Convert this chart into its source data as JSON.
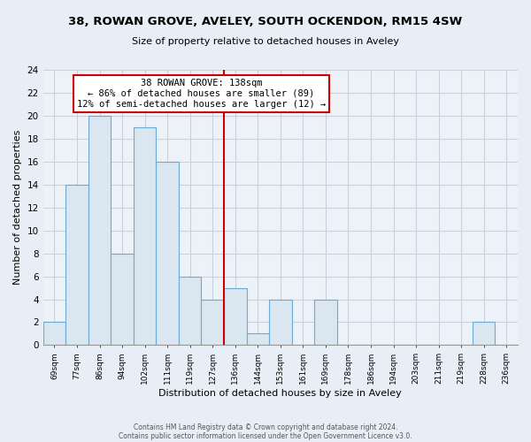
{
  "title": "38, ROWAN GROVE, AVELEY, SOUTH OCKENDON, RM15 4SW",
  "subtitle": "Size of property relative to detached houses in Aveley",
  "xlabel": "Distribution of detached houses by size in Aveley",
  "ylabel": "Number of detached properties",
  "bin_labels": [
    "69sqm",
    "77sqm",
    "86sqm",
    "94sqm",
    "102sqm",
    "111sqm",
    "119sqm",
    "127sqm",
    "136sqm",
    "144sqm",
    "153sqm",
    "161sqm",
    "169sqm",
    "178sqm",
    "186sqm",
    "194sqm",
    "203sqm",
    "211sqm",
    "219sqm",
    "228sqm",
    "236sqm"
  ],
  "bar_heights": [
    2,
    14,
    20,
    8,
    19,
    16,
    6,
    4,
    5,
    1,
    4,
    0,
    4,
    0,
    0,
    0,
    0,
    0,
    0,
    2,
    0
  ],
  "bar_color": "#dae6f0",
  "bar_edge_color": "#6aaad4",
  "highlight_bin_index": 8,
  "highlight_line_color": "#cc0000",
  "annotation_title": "38 ROWAN GROVE: 138sqm",
  "annotation_line1": "← 86% of detached houses are smaller (89)",
  "annotation_line2": "12% of semi-detached houses are larger (12) →",
  "annotation_box_color": "#ffffff",
  "annotation_box_edge_color": "#cc0000",
  "ylim": [
    0,
    24
  ],
  "yticks": [
    0,
    2,
    4,
    6,
    8,
    10,
    12,
    14,
    16,
    18,
    20,
    22,
    24
  ],
  "footer_line1": "Contains HM Land Registry data © Crown copyright and database right 2024.",
  "footer_line2": "Contains public sector information licensed under the Open Government Licence v3.0.",
  "bg_color": "#e8eef5",
  "plot_bg_color": "#edf2f8",
  "grid_color": "#c5d3e0"
}
